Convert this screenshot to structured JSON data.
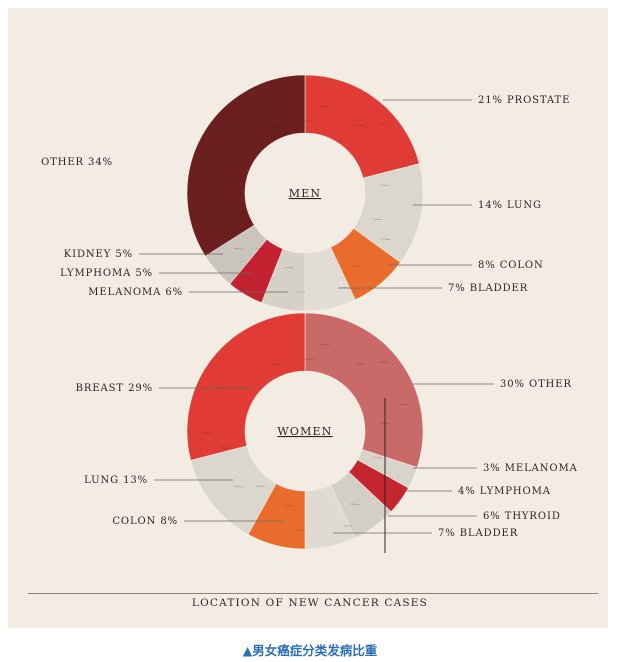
{
  "chart_data": [
    {
      "type": "donut",
      "center_label": "MEN",
      "slices": [
        {
          "label": "21% PROSTATE",
          "value": 21,
          "color": "#e03b35"
        },
        {
          "label": "14% LUNG",
          "value": 14,
          "color": "#dcd7cd"
        },
        {
          "label": "8% COLON",
          "value": 8,
          "color": "#ea6c2c"
        },
        {
          "label": "7% BLADDER",
          "value": 7,
          "color": "#e2ddd4"
        },
        {
          "label": "MELANOMA 6%",
          "value": 6,
          "color": "#d6d1c8"
        },
        {
          "label": "LYMPHOMA 5%",
          "value": 5,
          "color": "#c32230"
        },
        {
          "label": "KIDNEY 5%",
          "value": 5,
          "color": "#c9c5bd"
        },
        {
          "label": "OTHER 34%",
          "value": 34,
          "color": "#6b1f1e"
        }
      ]
    },
    {
      "type": "donut",
      "center_label": "WOMEN",
      "slices": [
        {
          "label": "30% OTHER",
          "value": 30,
          "color": "#c96a68"
        },
        {
          "label": "3% MELANOMA",
          "value": 3,
          "color": "#d9d4cb"
        },
        {
          "label": "4% LYMPHOMA",
          "value": 4,
          "color": "#c42630"
        },
        {
          "label": "6% THYROID",
          "value": 6,
          "color": "#d3cfc6"
        },
        {
          "label": "7% BLADDER",
          "value": 7,
          "color": "#e0dbd2"
        },
        {
          "label": "COLON 8%",
          "value": 8,
          "color": "#ea6c2c"
        },
        {
          "label": "LUNG 13%",
          "value": 13,
          "color": "#dcd7cd"
        },
        {
          "label": "BREAST 29%",
          "value": 29,
          "color": "#e03b35"
        }
      ]
    }
  ],
  "footer_title": "LOCATION OF NEW CANCER CASES",
  "caption": "▲男女癌症分类发病比重"
}
